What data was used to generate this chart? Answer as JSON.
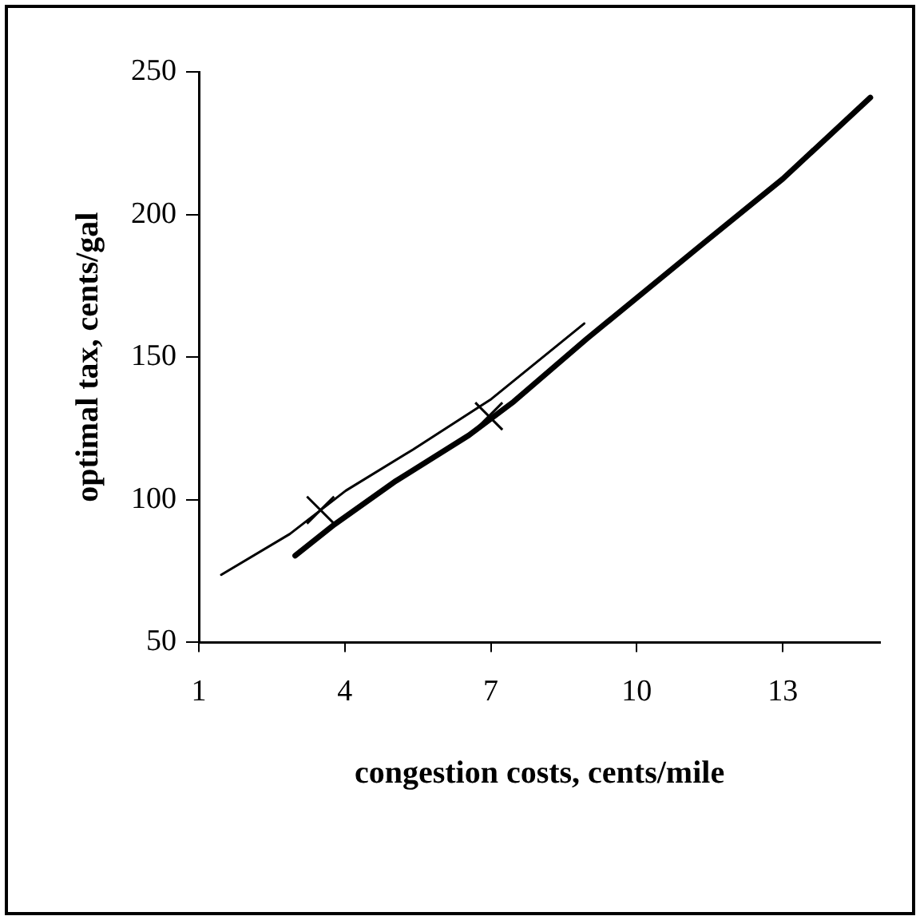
{
  "chart_data": {
    "type": "line",
    "xlabel": "congestion costs, cents/mile",
    "ylabel": "optimal tax, cents/gal",
    "xlim": [
      1,
      15
    ],
    "xticks": [
      1,
      4,
      7,
      10,
      13
    ],
    "ylim": [
      50,
      250
    ],
    "yticks": [
      50,
      100,
      150,
      200,
      250
    ],
    "grid": false,
    "legend": false,
    "series": [
      {
        "color": "#000000",
        "x": [
          1.46,
          2.87,
          4.02,
          5.4,
          7.01,
          8.92
        ],
        "values": [
          73.7,
          88,
          103.2,
          117.6,
          135.3,
          161.8
        ]
      },
      {
        "color": "#000000",
        "x": [
          2.98,
          3.79,
          5.05,
          6.55,
          7.47,
          8.97,
          11.39,
          13,
          14.8
        ],
        "values": [
          80.4,
          91.4,
          106.6,
          122.6,
          134.4,
          156.4,
          190.2,
          212.5,
          241
        ]
      },
      {
        "type": "scatter",
        "color": "#000000",
        "marker": "cross",
        "x": [
          3.5,
          6.96
        ],
        "values": [
          96.4,
          129.3
        ]
      }
    ]
  }
}
